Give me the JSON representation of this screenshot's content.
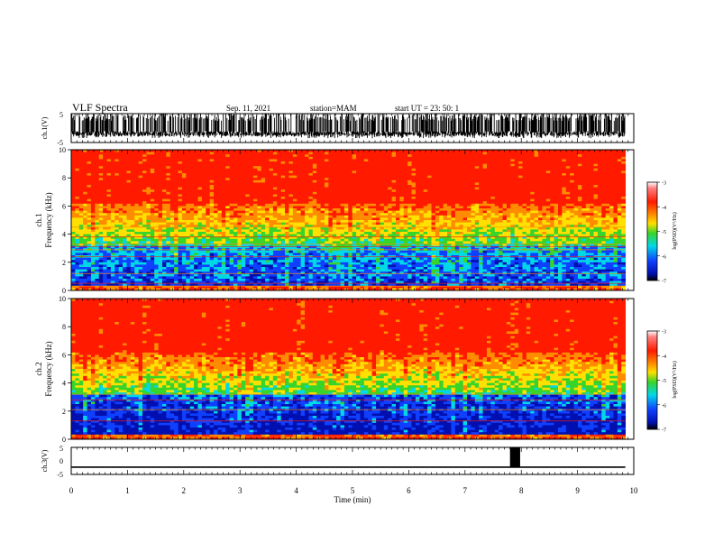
{
  "header": {
    "title": "VLF Spectra",
    "date": "Sep. 11, 2021",
    "station": "station=MAM",
    "start": "start  UT  =  23: 50: 1"
  },
  "chart_data": [
    {
      "type": "line",
      "panel": "ch1-waveform",
      "ylabel": "ch.1(V)",
      "ylim": [
        -5,
        5
      ],
      "yticks": [
        "5",
        "-5"
      ],
      "description_values": {
        "baseline": -2.0,
        "burst_max": 5,
        "burst_min": -5
      }
    },
    {
      "type": "heatmap",
      "panel": "ch1-spectrogram",
      "ylabel": [
        "ch.1",
        "Frequency  (kHz)"
      ],
      "ylim": [
        0,
        10
      ],
      "yticks": [
        "0",
        "2",
        "4",
        "6",
        "8",
        "10"
      ],
      "xlim": [
        0,
        9.85
      ],
      "colorbar": {
        "label": "log(PSD)(V²/Hz)",
        "range": [
          -7,
          -3
        ],
        "ticks": [
          "-3",
          "-4",
          "-5",
          "-6",
          "-7"
        ]
      },
      "horizontal_lines_khz": [
        0.3,
        0.5,
        1.2,
        2.4,
        2.9,
        3.1,
        3.3,
        3.8,
        4.5
      ]
    },
    {
      "type": "heatmap",
      "panel": "ch2-spectrogram",
      "ylabel": [
        "ch.2",
        "Frequency  (kHz)"
      ],
      "ylim": [
        0,
        10
      ],
      "yticks": [
        "0",
        "2",
        "4",
        "6",
        "8",
        "10"
      ],
      "xlim": [
        0,
        9.85
      ],
      "colorbar": {
        "label": "log(PSD)(V²/Hz)",
        "range": [
          -7,
          -3
        ],
        "ticks": [
          "-3",
          "-4",
          "-5",
          "-6",
          "-7"
        ]
      },
      "horizontal_lines_khz": [
        0.2,
        1.3,
        2.1,
        2.8,
        3.2
      ]
    },
    {
      "type": "line",
      "panel": "ch3-waveform",
      "ylabel": "ch.3(V)",
      "ylim": [
        -5,
        5
      ],
      "yticks": [
        "5",
        "0",
        "-5"
      ],
      "xlabel": "Time  (min)",
      "xlim": [
        0,
        10
      ],
      "xticks": [
        "0",
        "1",
        "2",
        "3",
        "4",
        "5",
        "6",
        "7",
        "8",
        "9",
        "10"
      ],
      "baseline": -2.3,
      "pulse": {
        "t_start": 7.8,
        "t_end": 7.98,
        "top": 5
      }
    }
  ],
  "colors": {
    "red": "#ff1a00",
    "orange": "#ff8c00",
    "yellow": "#ffe000",
    "green": "#38d42a",
    "cyan": "#00d8e8",
    "blue": "#1040ff",
    "navy": "#0010b0"
  }
}
